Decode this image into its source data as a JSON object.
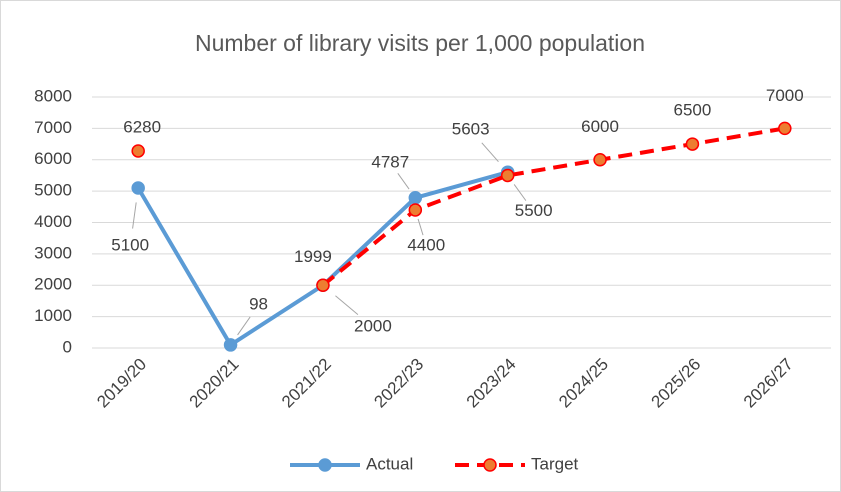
{
  "chart_data": {
    "type": "line",
    "title": "Number of library visits per 1,000 population",
    "categories": [
      "2019/20",
      "2020/21",
      "2021/22",
      "2022/23",
      "2023/24",
      "2024/25",
      "2025/26",
      "2026/27"
    ],
    "series": [
      {
        "name": "Actual",
        "color": "#5b9bd5",
        "values": [
          5100,
          98,
          1999,
          4787,
          5603,
          null,
          null,
          null
        ]
      },
      {
        "name": "Target",
        "color": "#ff0000",
        "marker_color": "#ed7d31",
        "dashed": true,
        "values": [
          6280,
          null,
          2000,
          4400,
          5500,
          6000,
          6500,
          7000
        ]
      }
    ],
    "ylim": [
      0,
      8000
    ],
    "yticks": [
      0,
      1000,
      2000,
      3000,
      4000,
      5000,
      6000,
      7000,
      8000
    ],
    "grid": true,
    "legend": "bottom"
  }
}
